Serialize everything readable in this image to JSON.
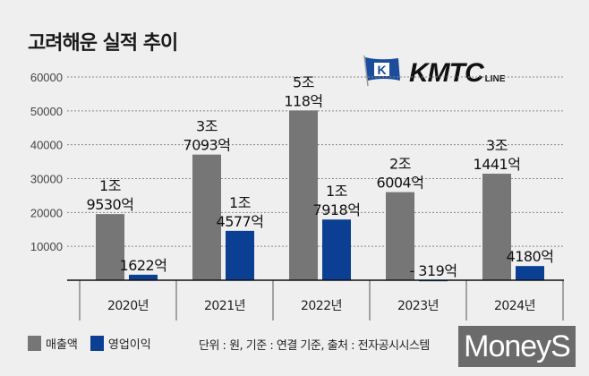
{
  "title": "고려해운 실적 추이",
  "logo": {
    "brand": "KMTC",
    "suffix": "LINE",
    "flag_letter": "K"
  },
  "chart_data": {
    "type": "bar",
    "categories": [
      "2020년",
      "2021년",
      "2022년",
      "2023년",
      "2024년"
    ],
    "series": [
      {
        "name": "매출액",
        "color": "#767676",
        "values": [
          19530,
          37093,
          50118,
          26004,
          31441
        ],
        "labels": [
          [
            "1조",
            "9530억"
          ],
          [
            "3조",
            "7093억"
          ],
          [
            "5조",
            "118억"
          ],
          [
            "2조",
            "6004억"
          ],
          [
            "3조",
            "1441억"
          ]
        ]
      },
      {
        "name": "영업이익",
        "color": "#0b3f94",
        "values": [
          1622,
          14577,
          17918,
          -319,
          4180
        ],
        "labels": [
          [
            "1622억"
          ],
          [
            "1조",
            "4577억"
          ],
          [
            "1조",
            "7918억"
          ],
          [
            "- 319억"
          ],
          [
            "4180억"
          ]
        ]
      }
    ],
    "yticks": [
      10000,
      20000,
      30000,
      40000,
      50000,
      60000
    ],
    "ylim": [
      0,
      60000
    ],
    "grid": true,
    "legend": "bottom-left"
  },
  "footnote": "단위 : 원, 기준 : 연결 기준, 출처 : 전자공시시스템",
  "watermark": "MoneyS"
}
